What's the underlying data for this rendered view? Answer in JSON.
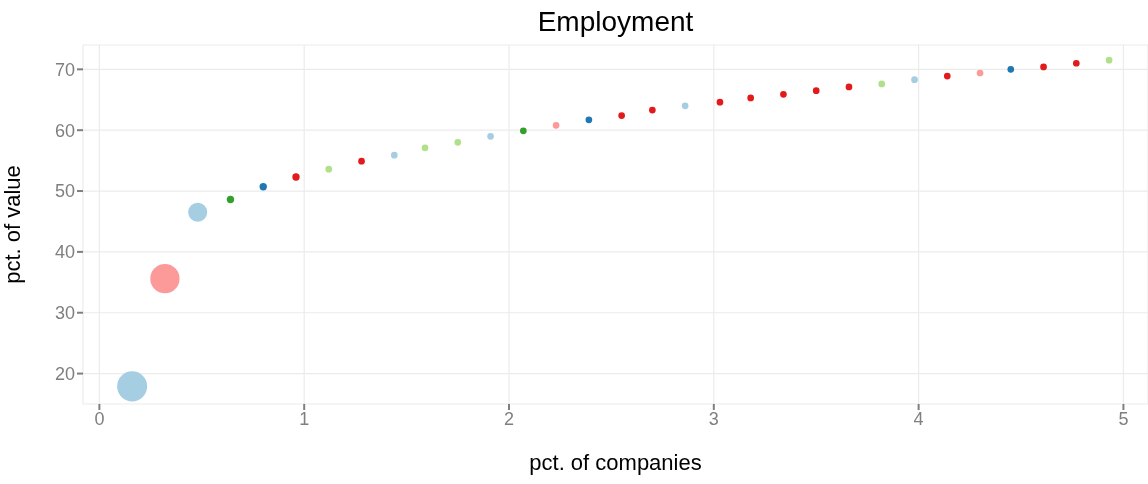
{
  "chart_data": {
    "type": "bubble",
    "title": "Employment",
    "xlabel": "pct. of companies",
    "ylabel": "pct. of value",
    "x": [
      0.16,
      0.32,
      0.48,
      0.64,
      0.8,
      0.96,
      1.12,
      1.28,
      1.44,
      1.59,
      1.75,
      1.91,
      2.07,
      2.23,
      2.39,
      2.55,
      2.7,
      2.86,
      3.03,
      3.18,
      3.34,
      3.5,
      3.66,
      3.82,
      3.98,
      4.14,
      4.3,
      4.45,
      4.61,
      4.77,
      4.93
    ],
    "values": [
      17.9,
      35.6,
      46.5,
      48.6,
      50.7,
      52.3,
      53.6,
      54.9,
      55.9,
      57.1,
      58.0,
      59.0,
      59.9,
      60.8,
      61.7,
      62.4,
      63.3,
      64.0,
      64.6,
      65.3,
      65.9,
      66.5,
      67.1,
      67.6,
      68.3,
      68.9,
      69.4,
      70.0,
      70.4,
      71.0,
      71.5
    ],
    "sizes": [
      1,
      0.95,
      0.4,
      0.06,
      0.06,
      0.06,
      0.05,
      0.05,
      0.05,
      0.05,
      0.05,
      0.05,
      0.05,
      0.05,
      0.05,
      0.05,
      0.05,
      0.05,
      0.05,
      0.05,
      0.05,
      0.05,
      0.05,
      0.05,
      0.05,
      0.05,
      0.05,
      0.05,
      0.05,
      0.05,
      0.05
    ],
    "colors": [
      "#a6cee3",
      "#fb9a99",
      "#a6cee3",
      "#33a02c",
      "#1f78b4",
      "#e31a1c",
      "#b2df8a",
      "#e31a1c",
      "#a6cee3",
      "#b2df8a",
      "#b2df8a",
      "#a6cee3",
      "#33a02c",
      "#fb9a99",
      "#1f78b4",
      "#e31a1c",
      "#e31a1c",
      "#a6cee3",
      "#e31a1c",
      "#e31a1c",
      "#e31a1c",
      "#e31a1c",
      "#e31a1c",
      "#b2df8a",
      "#a6cee3",
      "#e31a1c",
      "#fb9a99",
      "#1f78b4",
      "#e31a1c",
      "#e31a1c",
      "#b2df8a"
    ],
    "xlim": [
      -0.08,
      5.12
    ],
    "xticks": [
      0,
      1,
      2,
      3,
      4,
      5
    ],
    "ylim": [
      15,
      74
    ],
    "yticks": [
      20,
      30,
      40,
      50,
      60,
      70
    ],
    "grid": true
  }
}
